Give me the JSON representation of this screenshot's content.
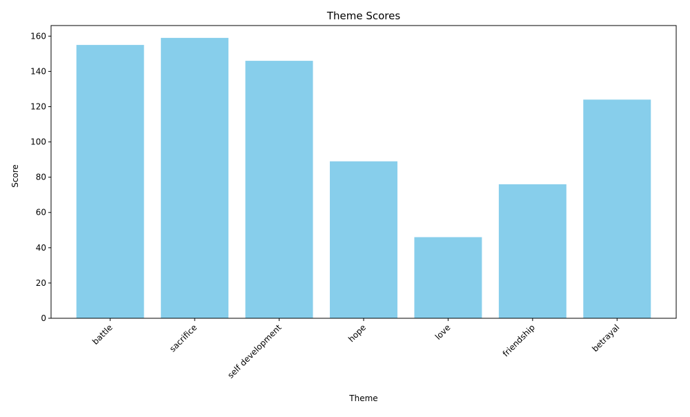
{
  "chart_data": {
    "type": "bar",
    "title": "Theme Scores",
    "xlabel": "Theme",
    "ylabel": "Score",
    "categories": [
      "battle",
      "sacrifice",
      "self development",
      "hope",
      "love",
      "friendship",
      "betrayal"
    ],
    "values": [
      155,
      159,
      146,
      89,
      46,
      76,
      124
    ],
    "ylim": [
      0,
      166
    ],
    "yticks": [
      0,
      20,
      40,
      60,
      80,
      100,
      120,
      140,
      160
    ],
    "bar_color": "#87CEEB",
    "grid": false,
    "legend": "none",
    "xtick_rotation": 45
  }
}
